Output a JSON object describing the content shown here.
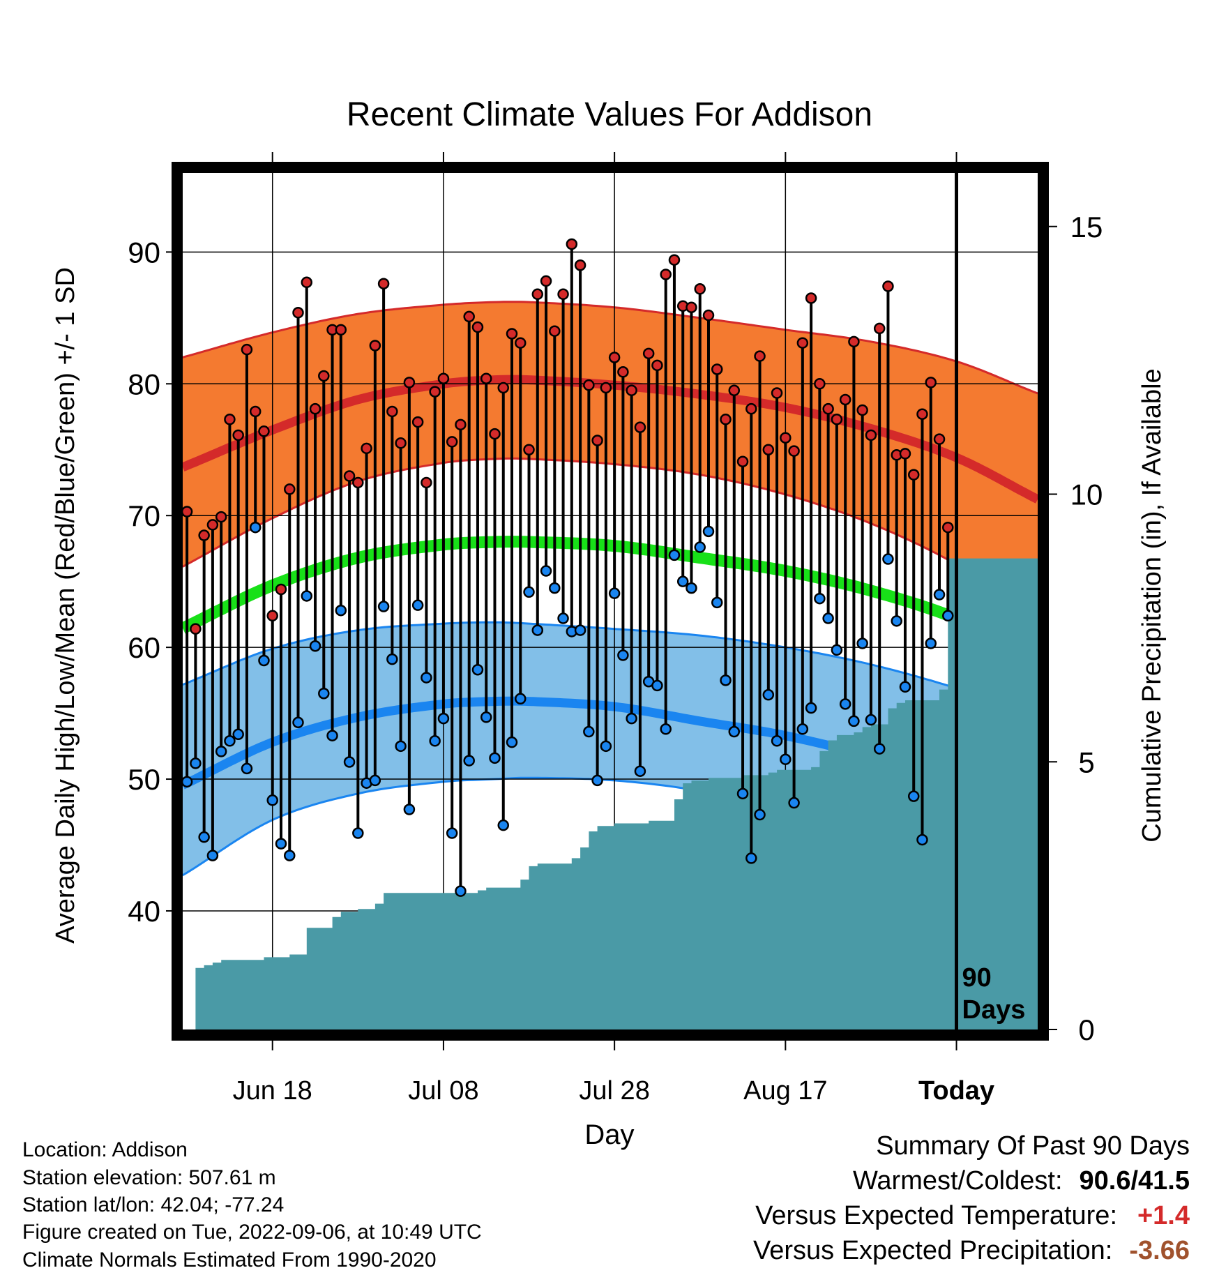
{
  "chart_data": {
    "type": "line",
    "title": "Recent Climate Values For Addison",
    "xlabel": "Day",
    "ylabel_left": "Average Daily High/Low/Mean (Red/Blue/Green) +/- 1 SD",
    "ylabel_right": "Cumulative Precipitation (in), If Available",
    "x_tick_labels": [
      "Jun 18",
      "Jul 08",
      "Jul 28",
      "Aug 17",
      "Today"
    ],
    "x_tick_days": [
      10,
      30,
      50,
      70,
      90
    ],
    "x_range": [
      -0.5,
      99.5
    ],
    "ylim_left": [
      31,
      96
    ],
    "yticks_left": [
      40,
      50,
      60,
      70,
      80,
      90
    ],
    "ylim_right": [
      0,
      16
    ],
    "yticks_right": [
      0,
      5,
      10,
      15
    ],
    "today_label": "90\nDays",
    "colors": {
      "high_band": "#f47a30",
      "high_mean": "#d42a2a",
      "high_edge": "#d42a2a",
      "low_band": "#82bfe8",
      "low_mean": "#1a85f0",
      "low_edge": "#1a85f0",
      "mean_line": "#18e018",
      "precip": "#4a9aa6",
      "high_dot": "#d42a2a",
      "low_dot": "#1a85f0"
    },
    "normals": {
      "days": [
        0,
        10,
        20,
        30,
        36,
        40,
        50,
        60,
        70,
        80,
        90,
        99
      ],
      "high_mean": [
        73.8,
        76.5,
        78.8,
        80.0,
        80.3,
        80.3,
        79.9,
        79.2,
        78.2,
        76.6,
        74.4,
        71.4
      ],
      "high_upper": [
        82.1,
        83.9,
        85.3,
        86.0,
        86.2,
        86.2,
        85.8,
        85.0,
        84.1,
        83.2,
        81.7,
        79.4
      ],
      "high_lower": [
        66.3,
        69.8,
        72.6,
        74.0,
        74.3,
        74.3,
        73.9,
        73.1,
        71.6,
        69.4,
        66.3,
        62.5
      ],
      "low_mean": [
        49.7,
        52.8,
        54.7,
        55.7,
        55.9,
        55.9,
        55.5,
        54.4,
        53.3,
        51.7,
        49.6,
        47.2
      ],
      "low_upper": [
        57.3,
        59.9,
        61.3,
        61.8,
        61.9,
        61.8,
        61.4,
        60.9,
        60.0,
        58.7,
        56.9,
        54.9
      ],
      "low_lower": [
        42.9,
        46.9,
        48.9,
        49.8,
        50.0,
        50.1,
        49.9,
        49.1,
        47.6,
        45.7,
        42.5,
        38.5
      ],
      "mean": [
        61.6,
        64.7,
        66.8,
        67.8,
        68.0,
        68.0,
        67.7,
        66.8,
        65.8,
        64.3,
        62.2,
        59.5
      ]
    },
    "series": [
      {
        "name": "Daily High",
        "values": [
          70.3,
          61.4,
          68.5,
          69.3,
          69.9,
          77.3,
          76.1,
          82.6,
          77.9,
          76.4,
          62.4,
          64.4,
          72.0,
          85.4,
          87.7,
          78.1,
          80.6,
          84.1,
          84.1,
          73.0,
          72.5,
          75.1,
          82.9,
          87.6,
          77.9,
          75.5,
          80.1,
          77.1,
          72.5,
          79.4,
          80.4,
          75.6,
          76.9,
          85.1,
          84.3,
          80.4,
          76.2,
          79.7,
          83.8,
          83.1,
          75.0,
          86.8,
          87.8,
          84.0,
          86.8,
          90.6,
          89.0,
          79.9,
          75.7,
          79.7,
          82.0,
          80.9,
          79.5,
          76.7,
          82.3,
          81.4,
          88.3,
          89.4,
          85.9,
          85.8,
          87.2,
          85.2,
          81.1,
          77.3,
          79.5,
          74.1,
          78.1,
          82.1,
          75.0,
          79.3,
          75.9,
          74.9,
          83.1,
          86.5,
          80.0,
          78.1,
          77.3,
          78.8,
          83.2,
          78.0,
          76.1,
          84.2,
          87.4,
          74.6,
          74.7,
          73.1,
          77.7,
          80.1,
          75.8,
          69.1
        ]
      },
      {
        "name": "Daily Low",
        "values": [
          49.8,
          51.2,
          45.6,
          44.2,
          52.1,
          52.9,
          53.4,
          50.8,
          69.1,
          59.0,
          48.4,
          45.1,
          44.2,
          54.3,
          63.9,
          60.1,
          56.5,
          53.3,
          62.8,
          51.3,
          45.9,
          49.7,
          49.9,
          63.1,
          59.1,
          52.5,
          47.7,
          63.2,
          57.7,
          52.9,
          54.6,
          45.9,
          41.5,
          51.4,
          58.3,
          54.7,
          51.6,
          46.5,
          52.8,
          56.1,
          64.2,
          61.3,
          65.8,
          64.5,
          62.2,
          61.2,
          61.3,
          53.6,
          49.9,
          52.5,
          64.1,
          59.4,
          54.6,
          50.6,
          57.4,
          57.1,
          53.8,
          67.0,
          65.0,
          64.5,
          67.6,
          68.8,
          63.4,
          57.5,
          53.6,
          48.9,
          44.0,
          47.3,
          56.4,
          52.9,
          51.5,
          48.2,
          53.8,
          55.4,
          63.7,
          62.2,
          59.8,
          55.7,
          54.4,
          60.3,
          54.5,
          52.3,
          66.7,
          62.0,
          57.0,
          48.7,
          45.4,
          60.3,
          64.0,
          62.4
        ]
      },
      {
        "name": "Cumulative Precipitation",
        "values": [
          0.0,
          1.15,
          1.2,
          1.25,
          1.3,
          1.3,
          1.3,
          1.3,
          1.3,
          1.35,
          1.35,
          1.35,
          1.4,
          1.4,
          1.9,
          1.9,
          1.9,
          2.1,
          2.2,
          2.2,
          2.25,
          2.25,
          2.35,
          2.55,
          2.55,
          2.55,
          2.55,
          2.55,
          2.55,
          2.55,
          2.55,
          2.55,
          2.55,
          2.55,
          2.6,
          2.65,
          2.65,
          2.65,
          2.65,
          2.8,
          3.05,
          3.1,
          3.1,
          3.1,
          3.1,
          3.2,
          3.4,
          3.7,
          3.8,
          3.8,
          3.85,
          3.85,
          3.85,
          3.85,
          3.9,
          3.9,
          3.9,
          4.3,
          4.6,
          4.65,
          4.65,
          4.7,
          4.7,
          4.7,
          4.7,
          4.75,
          4.75,
          4.75,
          4.8,
          4.85,
          4.85,
          4.85,
          4.85,
          4.9,
          5.2,
          5.4,
          5.5,
          5.5,
          5.55,
          5.65,
          5.7,
          5.7,
          6.0,
          6.1,
          6.15,
          6.15,
          6.15,
          6.15,
          6.35,
          8.8,
          8.8,
          8.8,
          8.8,
          8.8,
          8.8,
          8.8,
          8.8,
          8.8,
          8.8,
          8.8
        ]
      }
    ]
  },
  "meta": {
    "location": "Location: Addison",
    "elevation": "Station elevation: 507.61 m",
    "latlon": "Station lat/lon: 42.04; -77.24",
    "created": "Figure created on Tue, 2022-09-06, at 10:49 UTC",
    "normals_note": "Climate Normals Estimated From 1990-2020"
  },
  "summary": {
    "title": "Summary Of Past 90 Days",
    "warm_cold_label": "Warmest/Coldest:",
    "warm_cold_value": "90.6/41.5",
    "temp_label": "Versus Expected Temperature:",
    "temp_value": "+1.4",
    "temp_color": "#d42a2a",
    "precip_label": "Versus Expected Precipitation:",
    "precip_value": "-3.66",
    "precip_color": "#a0522d"
  }
}
